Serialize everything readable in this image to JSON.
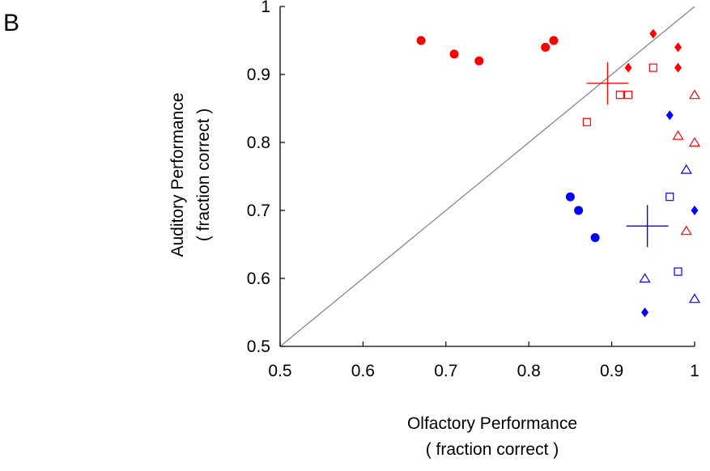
{
  "panel_label": "B",
  "chart_data": {
    "type": "scatter",
    "xlabel": [
      "Olfactory Performance",
      "( fraction correct )"
    ],
    "ylabel": [
      "Auditory Performance",
      "( fraction correct )"
    ],
    "xlim": [
      0.5,
      1.0
    ],
    "ylim": [
      0.5,
      1.0
    ],
    "x_ticks": [
      "0.5",
      "0.6",
      "0.7",
      "0.8",
      "0.9",
      "1"
    ],
    "y_ticks": [
      "0.5",
      "0.6",
      "0.7",
      "0.8",
      "0.9",
      "1"
    ],
    "grid": false,
    "diagonal": {
      "from": [
        0.5,
        0.5
      ],
      "to": [
        1.0,
        1.0
      ],
      "color": "#808080"
    },
    "series": [
      {
        "color": "#ff0000",
        "marker": "filled-circle",
        "points": [
          [
            0.67,
            0.95
          ],
          [
            0.71,
            0.93
          ],
          [
            0.74,
            0.92
          ],
          [
            0.82,
            0.94
          ],
          [
            0.83,
            0.95
          ]
        ]
      },
      {
        "color": "#ff0000",
        "marker": "filled-diamond",
        "points": [
          [
            0.92,
            0.91
          ],
          [
            0.95,
            0.96
          ],
          [
            0.98,
            0.94
          ],
          [
            0.98,
            0.91
          ]
        ]
      },
      {
        "color": "#ff0000",
        "marker": "open-square",
        "points": [
          [
            0.95,
            0.91
          ],
          [
            0.91,
            0.87
          ],
          [
            0.92,
            0.87
          ],
          [
            0.87,
            0.83
          ]
        ]
      },
      {
        "color": "#ff0000",
        "marker": "open-triangle",
        "points": [
          [
            1.0,
            0.87
          ],
          [
            0.98,
            0.81
          ],
          [
            1.0,
            0.8
          ],
          [
            0.99,
            0.67
          ]
        ]
      },
      {
        "color": "#ff0000",
        "marker": "plus",
        "points": [
          [
            0.895,
            0.887
          ]
        ]
      },
      {
        "color": "#0000ff",
        "marker": "filled-circle",
        "points": [
          [
            0.85,
            0.72
          ],
          [
            0.86,
            0.7
          ],
          [
            0.88,
            0.66
          ]
        ]
      },
      {
        "color": "#0000ff",
        "marker": "filled-diamond",
        "points": [
          [
            0.97,
            0.84
          ],
          [
            1.0,
            0.7
          ],
          [
            0.94,
            0.55
          ]
        ]
      },
      {
        "color": "#0000ff",
        "marker": "open-square",
        "points": [
          [
            0.97,
            0.72
          ],
          [
            0.98,
            0.61
          ]
        ]
      },
      {
        "color": "#0000ff",
        "marker": "open-triangle",
        "points": [
          [
            0.99,
            0.76
          ],
          [
            0.94,
            0.6
          ],
          [
            1.0,
            0.57
          ]
        ]
      },
      {
        "color": "#0000ff",
        "marker": "plus",
        "points": [
          [
            0.943,
            0.677
          ]
        ]
      }
    ]
  }
}
